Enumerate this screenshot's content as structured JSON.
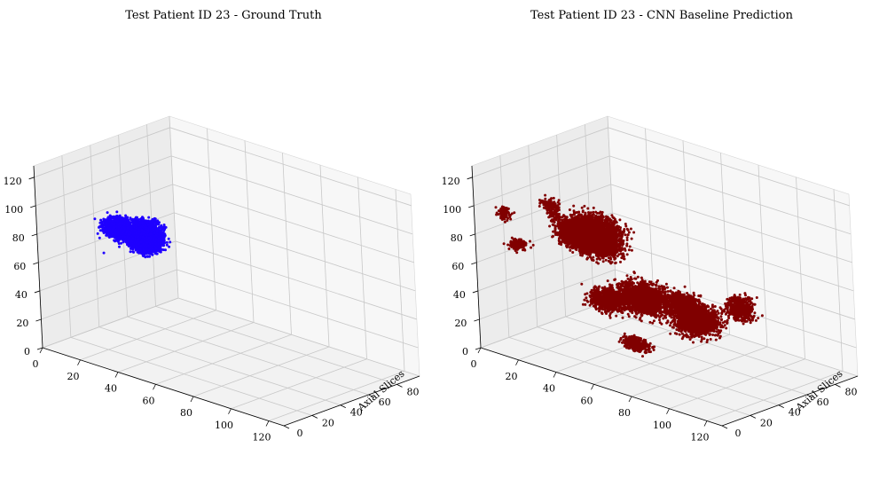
{
  "chart_data": [
    {
      "type": "scatter3d",
      "title": "Test Patient ID 23 - Ground Truth",
      "xlabel": "",
      "ylabel": "Axial Slices",
      "zlabel": "",
      "xlim": [
        0,
        128
      ],
      "ylim": [
        0,
        96
      ],
      "zlim": [
        0,
        128
      ],
      "xticks": [
        "0",
        "20",
        "40",
        "60",
        "80",
        "100",
        "120"
      ],
      "yticks": [
        "0",
        "20",
        "40",
        "60",
        "80"
      ],
      "zticks": [
        "0",
        "20",
        "40",
        "60",
        "80",
        "100",
        "120"
      ],
      "grid": true,
      "color": "#1f00ff",
      "blobs": [
        {
          "x": 53,
          "y": 8,
          "z": 98,
          "rx": 9,
          "ry": 10,
          "rz": 14,
          "n": 2400
        },
        {
          "x": 38,
          "y": 10,
          "z": 96,
          "rx": 12,
          "ry": 8,
          "rz": 10,
          "n": 1400
        },
        {
          "x": 46,
          "y": 14,
          "z": 90,
          "rx": 10,
          "ry": 8,
          "rz": 8,
          "n": 800
        }
      ],
      "outliers": [
        {
          "x": 20,
          "y": 20,
          "z": 68
        }
      ]
    },
    {
      "type": "scatter3d",
      "title": "Test Patient ID 23 - CNN Baseline Prediction",
      "xlabel": "",
      "ylabel": "Axial Slices",
      "zlabel": "",
      "xlim": [
        0,
        128
      ],
      "ylim": [
        0,
        96
      ],
      "zlim": [
        0,
        128
      ],
      "xticks": [
        "0",
        "20",
        "40",
        "60",
        "80",
        "100",
        "120"
      ],
      "yticks": [
        "0",
        "20",
        "40",
        "60",
        "80"
      ],
      "zticks": [
        "0",
        "20",
        "40",
        "60",
        "80",
        "100",
        "120"
      ],
      "grid": true,
      "color": "#800000",
      "blobs": [
        {
          "x": 55,
          "y": 12,
          "z": 98,
          "rx": 18,
          "ry": 12,
          "rz": 18,
          "n": 3200
        },
        {
          "x": 44,
          "y": 18,
          "z": 92,
          "rx": 16,
          "ry": 10,
          "rz": 12,
          "n": 1800
        },
        {
          "x": 70,
          "y": 25,
          "z": 55,
          "rx": 18,
          "ry": 12,
          "rz": 14,
          "n": 1800
        },
        {
          "x": 95,
          "y": 28,
          "z": 50,
          "rx": 14,
          "ry": 14,
          "rz": 14,
          "n": 1600
        },
        {
          "x": 100,
          "y": 12,
          "z": 70,
          "rx": 10,
          "ry": 10,
          "rz": 8,
          "n": 700
        },
        {
          "x": 55,
          "y": 20,
          "z": 50,
          "rx": 12,
          "ry": 10,
          "rz": 10,
          "n": 900
        },
        {
          "x": 12,
          "y": 5,
          "z": 98,
          "rx": 5,
          "ry": 4,
          "rz": 6,
          "n": 90
        },
        {
          "x": 10,
          "y": 40,
          "z": 90,
          "rx": 6,
          "ry": 5,
          "rz": 6,
          "n": 120
        },
        {
          "x": 20,
          "y": 30,
          "z": 90,
          "rx": 4,
          "ry": 3,
          "rz": 5,
          "n": 40
        },
        {
          "x": 15,
          "y": 10,
          "z": 75,
          "rx": 6,
          "ry": 6,
          "rz": 5,
          "n": 120
        },
        {
          "x": 80,
          "y": 5,
          "z": 35,
          "rx": 10,
          "ry": 6,
          "rz": 6,
          "n": 300
        },
        {
          "x": 110,
          "y": 40,
          "z": 60,
          "rx": 8,
          "ry": 8,
          "rz": 12,
          "n": 500
        }
      ],
      "outliers": []
    }
  ]
}
